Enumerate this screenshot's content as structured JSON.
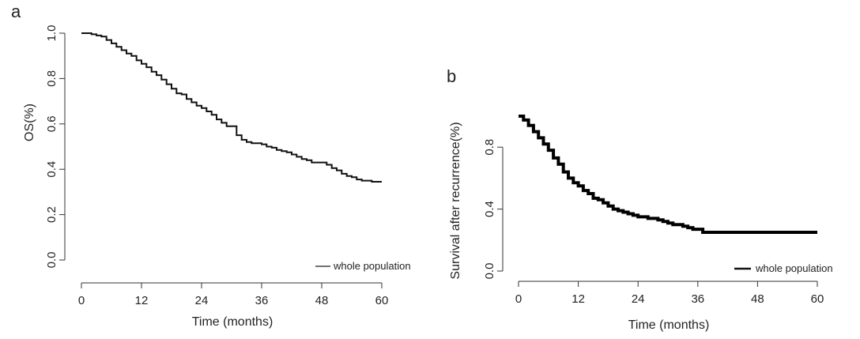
{
  "chart_data": [
    {
      "type": "line",
      "panel_label": "a",
      "xlabel": "Time (months)",
      "ylabel": "OS(%)",
      "xlim": [
        0,
        60
      ],
      "ylim": [
        0,
        1.0
      ],
      "xticks": [
        0,
        12,
        24,
        36,
        48,
        60
      ],
      "yticks": [
        0.0,
        0.2,
        0.4,
        0.6,
        0.8,
        1.0
      ],
      "xtick_labels": [
        "0",
        "12",
        "24",
        "36",
        "48",
        "60"
      ],
      "ytick_labels": [
        "0.0",
        "0.2",
        "0.4",
        "0.6",
        "0.8",
        "1.0"
      ],
      "grid": false,
      "legend_position": "bottom-right",
      "series": [
        {
          "name": "whole population",
          "step": true,
          "x": [
            0,
            2,
            3,
            4,
            5,
            6,
            7,
            8,
            9,
            10,
            11,
            12,
            13,
            14,
            15,
            16,
            17,
            18,
            19,
            20,
            21,
            22,
            23,
            24,
            25,
            26,
            27,
            28,
            29,
            30,
            31,
            32,
            33,
            34,
            35,
            36,
            37,
            38,
            39,
            40,
            41,
            42,
            43,
            44,
            45,
            46,
            47,
            48,
            49,
            50,
            51,
            52,
            53,
            54,
            55,
            56,
            57,
            58,
            59,
            60
          ],
          "y": [
            1.0,
            0.995,
            0.99,
            0.985,
            0.97,
            0.955,
            0.94,
            0.925,
            0.91,
            0.9,
            0.88,
            0.865,
            0.85,
            0.83,
            0.815,
            0.795,
            0.775,
            0.755,
            0.735,
            0.73,
            0.71,
            0.695,
            0.68,
            0.67,
            0.655,
            0.64,
            0.62,
            0.605,
            0.59,
            0.59,
            0.55,
            0.53,
            0.52,
            0.515,
            0.515,
            0.51,
            0.5,
            0.495,
            0.485,
            0.48,
            0.475,
            0.465,
            0.455,
            0.445,
            0.44,
            0.43,
            0.43,
            0.43,
            0.42,
            0.405,
            0.395,
            0.38,
            0.37,
            0.365,
            0.355,
            0.35,
            0.35,
            0.345,
            0.345,
            0.345
          ]
        }
      ]
    },
    {
      "type": "line",
      "panel_label": "b",
      "xlabel": "Time (months)",
      "ylabel": "Survival after recurrence(%)",
      "xlim": [
        0,
        60
      ],
      "ylim": [
        0,
        1.0
      ],
      "xticks": [
        0,
        12,
        24,
        36,
        48,
        60
      ],
      "yticks": [
        0.0,
        0.4,
        0.8
      ],
      "xtick_labels": [
        "0",
        "12",
        "24",
        "36",
        "48",
        "60"
      ],
      "ytick_labels": [
        "0.0",
        "0.4",
        "0.8"
      ],
      "grid": false,
      "legend_position": "bottom-right",
      "series": [
        {
          "name": "whole population",
          "step": true,
          "x": [
            0,
            1,
            2,
            3,
            4,
            5,
            6,
            7,
            8,
            9,
            10,
            11,
            12,
            13,
            14,
            15,
            16,
            17,
            18,
            19,
            20,
            21,
            22,
            23,
            24,
            25,
            26,
            27,
            28,
            29,
            30,
            31,
            32,
            33,
            34,
            35,
            36,
            37,
            40,
            45,
            50,
            55,
            60
          ],
          "y": [
            1.0,
            0.975,
            0.94,
            0.9,
            0.86,
            0.82,
            0.78,
            0.73,
            0.69,
            0.64,
            0.6,
            0.57,
            0.55,
            0.52,
            0.5,
            0.47,
            0.46,
            0.44,
            0.42,
            0.4,
            0.39,
            0.38,
            0.37,
            0.36,
            0.35,
            0.35,
            0.34,
            0.34,
            0.33,
            0.32,
            0.31,
            0.3,
            0.3,
            0.29,
            0.28,
            0.27,
            0.27,
            0.25,
            0.25,
            0.25,
            0.25,
            0.25,
            0.25
          ]
        }
      ]
    }
  ]
}
